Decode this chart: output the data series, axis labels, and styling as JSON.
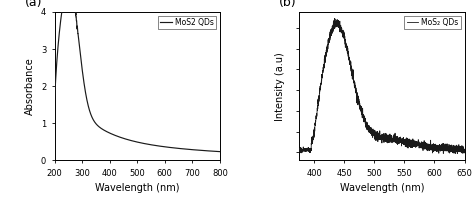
{
  "panel_a": {
    "label": "(a)",
    "xlabel": "Wavelength (nm)",
    "ylabel": "Absorbance",
    "legend": "MoS2 QDs",
    "xlim": [
      200,
      800
    ],
    "ylim": [
      0,
      4
    ],
    "xticks": [
      200,
      300,
      400,
      500,
      600,
      700,
      800
    ],
    "yticks": [
      0,
      1,
      2,
      3,
      4
    ]
  },
  "panel_b": {
    "label": "(b)",
    "xlabel": "Wavelength (nm)",
    "ylabel": "Intensity (a.u)",
    "legend": "MoS₂ QDs",
    "xlim": [
      375,
      650
    ],
    "xticks": [
      400,
      450,
      500,
      550,
      600,
      650
    ]
  },
  "line_color": "#1a1a1a",
  "background_color": "#ffffff"
}
